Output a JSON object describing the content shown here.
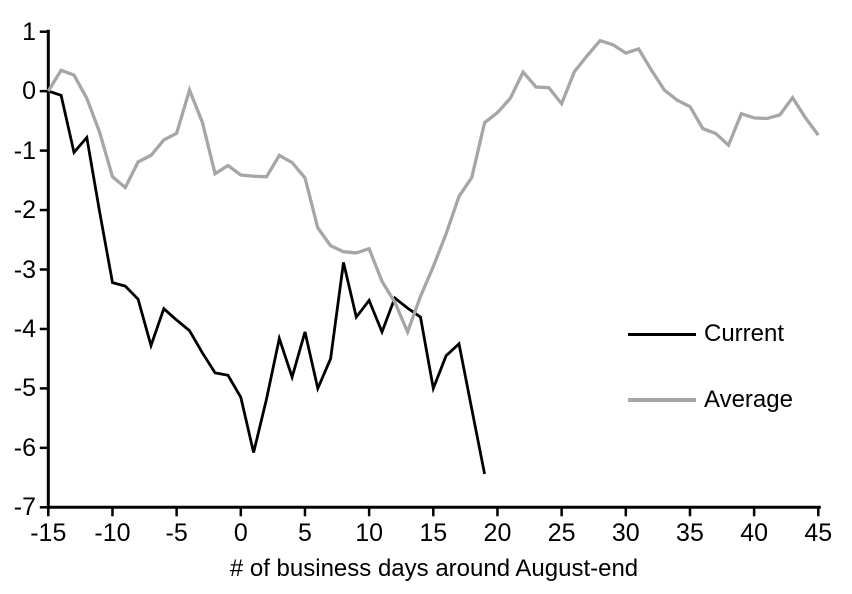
{
  "chart_data": {
    "type": "line",
    "title": "",
    "xlabel": "# of business days around August-end",
    "ylabel": "",
    "xlim": [
      -15,
      45
    ],
    "ylim": [
      -7,
      1
    ],
    "x_ticks": [
      -15,
      -10,
      -5,
      0,
      5,
      10,
      15,
      20,
      25,
      30,
      35,
      40,
      45
    ],
    "y_ticks": [
      1,
      0,
      -1,
      -2,
      -3,
      -4,
      -5,
      -6,
      -7
    ],
    "grid": false,
    "legend_position": "right-middle",
    "axis_color": "#000000",
    "series": [
      {
        "name": "Current",
        "color": "#000000",
        "width": 2.8,
        "x": [
          -15,
          -14,
          -13,
          -12,
          -11,
          -10,
          -9,
          -8,
          -7,
          -6,
          -5,
          -4,
          -3,
          -2,
          -1,
          0,
          1,
          2,
          3,
          4,
          5,
          6,
          7,
          8,
          9,
          10,
          11,
          12,
          13,
          14,
          15,
          16,
          17,
          18,
          19
        ],
        "y": [
          0.0,
          -0.07,
          -1.03,
          -0.78,
          -2.03,
          -3.22,
          -3.28,
          -3.5,
          -4.28,
          -3.66,
          -3.85,
          -4.03,
          -4.4,
          -4.74,
          -4.78,
          -5.15,
          -6.08,
          -5.18,
          -4.16,
          -4.81,
          -4.05,
          -5.0,
          -4.5,
          -2.88,
          -3.8,
          -3.52,
          -4.05,
          -3.48,
          -3.65,
          -3.8,
          -5.0,
          -4.45,
          -4.25,
          -5.35,
          -6.44
        ]
      },
      {
        "name": "Average",
        "color": "#a6a6a6",
        "width": 3.3,
        "x": [
          -15,
          -14,
          -13,
          -12,
          -11,
          -10,
          -9,
          -8,
          -7,
          -6,
          -5,
          -4,
          -3,
          -2,
          -1,
          0,
          1,
          2,
          3,
          4,
          5,
          6,
          7,
          8,
          9,
          10,
          11,
          12,
          13,
          14,
          15,
          16,
          17,
          18,
          19,
          20,
          21,
          22,
          23,
          24,
          25,
          26,
          27,
          28,
          29,
          30,
          31,
          32,
          33,
          34,
          35,
          36,
          37,
          38,
          39,
          40,
          41,
          42,
          43,
          44,
          45
        ],
        "y": [
          0.0,
          0.35,
          0.27,
          -0.12,
          -0.69,
          -1.44,
          -1.62,
          -1.19,
          -1.08,
          -0.82,
          -0.71,
          0.02,
          -0.52,
          -1.39,
          -1.25,
          -1.41,
          -1.43,
          -1.44,
          -1.08,
          -1.2,
          -1.46,
          -2.3,
          -2.6,
          -2.7,
          -2.72,
          -2.65,
          -3.2,
          -3.55,
          -4.05,
          -3.45,
          -2.95,
          -2.4,
          -1.77,
          -1.45,
          -0.53,
          -0.36,
          -0.12,
          0.32,
          0.07,
          0.06,
          -0.21,
          0.33,
          0.6,
          0.85,
          0.78,
          0.64,
          0.71,
          0.35,
          0.02,
          -0.15,
          -0.26,
          -0.63,
          -0.71,
          -0.91,
          -0.38,
          -0.45,
          -0.46,
          -0.4,
          -0.11,
          -0.45,
          -0.74
        ]
      }
    ]
  }
}
